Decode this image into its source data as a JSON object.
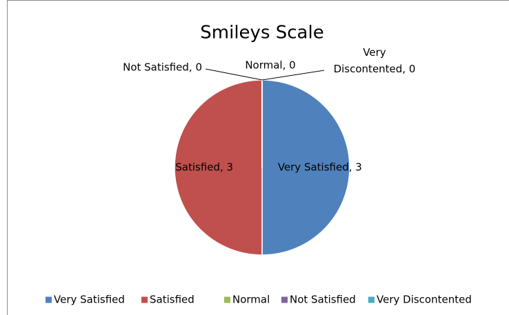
{
  "chart_data": {
    "type": "pie",
    "title": "Smileys Scale",
    "categories": [
      "Very Satisfied",
      "Satisfied",
      "Normal",
      "Not Satisfied",
      "Very Discontented"
    ],
    "values": [
      3,
      3,
      0,
      0,
      0
    ],
    "value_labels": [
      "Very Satisfied, 3",
      "Satisfied, 3",
      "Normal, 0",
      "Not Satisfied, 0",
      "Very Discontented, 0"
    ],
    "colors": [
      "#4f81bd",
      "#c0504d",
      "#9bbb59",
      "#8064a2",
      "#4bacc6"
    ],
    "legend": "bottom"
  }
}
